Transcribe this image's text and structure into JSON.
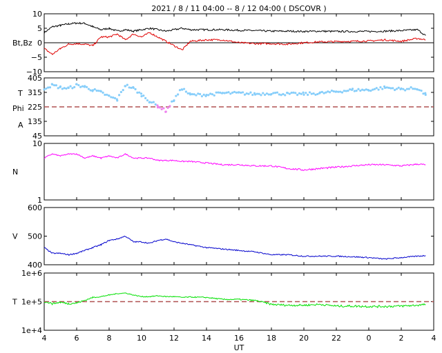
{
  "title": "2021 /   8 / 11   04:00  --   8 / 12   04:00 ( DSCOVR )",
  "x_label": "UT",
  "x_ticks": [
    "4",
    "6",
    "8",
    "10",
    "12",
    "14",
    "16",
    "18",
    "20",
    "22",
    "0",
    "2",
    "4"
  ],
  "colors": {
    "bt": "#000000",
    "bz": "#e00000",
    "theta": "#87cefa",
    "phi_low": "#b0b0b0",
    "phi_violet": "#ee82ee",
    "density": "#ff00ff",
    "speed": "#0000cc",
    "temperature": "#00e000",
    "reference": "#b05050"
  },
  "chart_data": [
    {
      "type": "line",
      "name": "bt-bz",
      "ylabel": "Bt,Bz",
      "ylim": [
        -10,
        10
      ],
      "yticks": [
        "10",
        "5",
        "0",
        "−5",
        "−10"
      ],
      "x": [
        4,
        4.5,
        5,
        5.5,
        6,
        6.5,
        7,
        7.5,
        8,
        8.5,
        9,
        9.5,
        10,
        10.5,
        11,
        11.5,
        12,
        12.5,
        13,
        14,
        15,
        16,
        17,
        18,
        19,
        20,
        21,
        22,
        23,
        24,
        25,
        26,
        27,
        27.5
      ],
      "series": [
        {
          "key": "bt",
          "values": [
            3.5,
            5.5,
            6,
            6.5,
            6.8,
            6.7,
            5.5,
            4.5,
            5,
            4,
            4.5,
            4,
            4.5,
            5,
            4.5,
            4,
            4.5,
            5,
            4.5,
            4.5,
            4.5,
            4.3,
            4.2,
            4,
            4,
            3.9,
            4,
            3.9,
            3.9,
            3.9,
            4,
            4.2,
            4.5,
            2.5
          ]
        },
        {
          "key": "bz",
          "values": [
            -2,
            -4,
            -2,
            -0.5,
            -0.3,
            -0.5,
            -1,
            2,
            2,
            3,
            1,
            3,
            2,
            3.5,
            2,
            0.5,
            -1,
            -2.5,
            0.5,
            1,
            1,
            0,
            -0.3,
            -0.3,
            -0.5,
            0,
            0.3,
            0.4,
            0.5,
            0.6,
            1,
            0.5,
            1.5,
            1
          ]
        }
      ]
    },
    {
      "type": "scatter",
      "name": "theta-phi",
      "ylabel_lines": [
        "T",
        "Phi",
        "A"
      ],
      "ylim": [
        45,
        405
      ],
      "yticks": [
        "405",
        "315",
        "225",
        "135",
        "45"
      ],
      "reference_line": 225,
      "x": [
        4,
        4.5,
        5,
        5.5,
        6,
        6.5,
        7,
        7.5,
        8,
        8.5,
        9,
        9.5,
        10,
        10.5,
        11,
        11.5,
        12,
        12.5,
        13,
        14,
        15,
        16,
        17,
        18,
        19,
        20,
        21,
        22,
        23,
        24,
        25,
        26,
        27,
        27.5
      ],
      "series": [
        {
          "key": "theta",
          "values": [
            340,
            360,
            345,
            340,
            360,
            350,
            330,
            315,
            290,
            270,
            360,
            340,
            300,
            260,
            230,
            200,
            270,
            340,
            300,
            300,
            310,
            310,
            305,
            310,
            305,
            305,
            310,
            320,
            330,
            330,
            345,
            335,
            340,
            300
          ]
        }
      ]
    },
    {
      "type": "line",
      "name": "density",
      "ylabel": "N",
      "ylim": [
        1,
        10
      ],
      "log": true,
      "yticks": [
        "10",
        "1"
      ],
      "x": [
        4,
        4.5,
        5,
        5.5,
        6,
        6.5,
        7,
        7.5,
        8,
        8.5,
        9,
        9.5,
        10,
        10.5,
        11,
        11.5,
        12,
        12.5,
        13,
        14,
        15,
        16,
        17,
        18,
        19,
        20,
        21,
        22,
        23,
        24,
        25,
        26,
        27,
        27.5
      ],
      "series": [
        {
          "key": "density",
          "values": [
            5.5,
            6.5,
            6,
            6.5,
            6.5,
            5.5,
            6,
            5.5,
            6,
            5.5,
            6.5,
            5.5,
            5.5,
            5.5,
            5,
            5,
            5,
            4.8,
            4.8,
            4.5,
            4.2,
            4.2,
            4,
            4,
            3.6,
            3.4,
            3.6,
            3.8,
            4,
            4.2,
            4.2,
            4,
            4.3,
            4.2
          ]
        }
      ]
    },
    {
      "type": "line",
      "name": "speed",
      "ylabel": "V",
      "ylim": [
        400,
        600
      ],
      "yticks": [
        "600",
        "500",
        "400"
      ],
      "x": [
        4,
        4.5,
        5,
        5.5,
        6,
        6.5,
        7,
        7.5,
        8,
        8.5,
        9,
        9.5,
        10,
        10.5,
        11,
        11.5,
        12,
        12.5,
        13,
        14,
        15,
        16,
        17,
        18,
        19,
        20,
        21,
        22,
        23,
        24,
        25,
        26,
        27,
        27.5
      ],
      "series": [
        {
          "key": "speed",
          "values": [
            460,
            440,
            440,
            435,
            440,
            450,
            460,
            470,
            485,
            490,
            500,
            480,
            480,
            475,
            485,
            490,
            480,
            475,
            470,
            460,
            455,
            450,
            445,
            435,
            435,
            430,
            430,
            430,
            428,
            425,
            420,
            425,
            430,
            432
          ]
        }
      ]
    },
    {
      "type": "line",
      "name": "temperature",
      "ylabel": "T",
      "ylim": [
        10000,
        1000000
      ],
      "log": true,
      "yticks": [
        "1e+6",
        "1e+5",
        "1e+4"
      ],
      "reference_line": 100000,
      "x": [
        4,
        4.5,
        5,
        5.5,
        6,
        6.5,
        7,
        7.5,
        8,
        8.5,
        9,
        9.5,
        10,
        10.5,
        11,
        11.5,
        12,
        12.5,
        13,
        14,
        15,
        16,
        17,
        18,
        19,
        20,
        21,
        22,
        23,
        24,
        25,
        26,
        27,
        27.5
      ],
      "series": [
        {
          "key": "temperature",
          "values": [
            100000,
            85000,
            95000,
            85000,
            90000,
            110000,
            140000,
            150000,
            170000,
            190000,
            200000,
            170000,
            150000,
            150000,
            160000,
            150000,
            150000,
            140000,
            145000,
            140000,
            120000,
            120000,
            110000,
            80000,
            75000,
            75000,
            80000,
            70000,
            70000,
            68000,
            68000,
            70000,
            75000,
            80000
          ]
        }
      ]
    }
  ]
}
